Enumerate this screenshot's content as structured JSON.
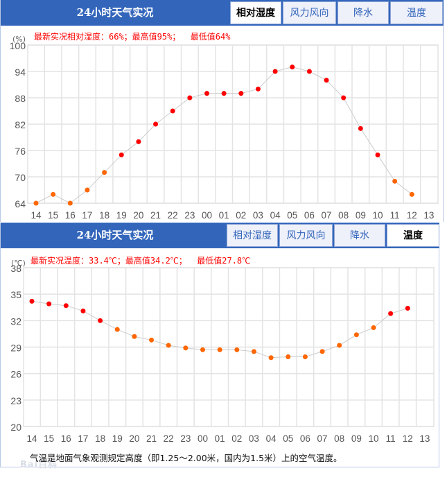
{
  "panels": [
    {
      "title": "24小时天气实况",
      "tabs": [
        {
          "label": "相对湿度",
          "active": true
        },
        {
          "label": "风力风向",
          "active": false
        },
        {
          "label": "降水",
          "active": false
        },
        {
          "label": "温度",
          "active": false
        }
      ],
      "latest_text": "最新实况相对湿度：66%；最高值95%；  最低值64%",
      "unit": "(%)"
    },
    {
      "title": "24小时天气实况",
      "tabs": [
        {
          "label": "相对湿度",
          "active": false
        },
        {
          "label": "风力风向",
          "active": false
        },
        {
          "label": "降水",
          "active": false
        },
        {
          "label": "温度",
          "active": true
        }
      ],
      "latest_text": "最新实况温度：33.4℃；最高值34.2℃；  最低值27.8℃",
      "unit": "(℃)",
      "caption": "气温是地面气象观测规定高度（即1.25～2.00米，国内为1.5米）上的空气温度。",
      "watermark": "Bai百科"
    }
  ],
  "colors": {
    "header_bg": "#3366bb",
    "grid": "#e3e3e3",
    "line": "#cccccc",
    "dot_high": "#ff0000",
    "dot_low": "#ff6600"
  },
  "chart_data": [
    {
      "type": "line",
      "title": "最新实况相对湿度：66%；最高值95%；最低值64%",
      "xlabel": "",
      "ylabel": "(%)",
      "categories": [
        "14",
        "15",
        "16",
        "17",
        "18",
        "19",
        "20",
        "21",
        "22",
        "23",
        "00",
        "01",
        "02",
        "03",
        "04",
        "05",
        "06",
        "07",
        "08",
        "09",
        "10",
        "11",
        "12",
        "13"
      ],
      "values": [
        64,
        66,
        64,
        67,
        71,
        75,
        78,
        82,
        85,
        88,
        89,
        89,
        89,
        90,
        94,
        95,
        94,
        92,
        88,
        81,
        75,
        69,
        66,
        null
      ],
      "yticks": [
        64,
        70,
        76,
        82,
        88,
        94,
        100
      ],
      "ylim": [
        64,
        100
      ],
      "highlight_threshold": 75,
      "grid": true,
      "legend": "none"
    },
    {
      "type": "line",
      "title": "最新实况温度：33.4℃；最高值34.2℃；最低值27.8℃",
      "xlabel": "",
      "ylabel": "(℃)",
      "categories": [
        "14",
        "15",
        "16",
        "17",
        "18",
        "19",
        "20",
        "21",
        "22",
        "23",
        "00",
        "01",
        "02",
        "03",
        "04",
        "05",
        "06",
        "07",
        "08",
        "09",
        "10",
        "11",
        "12",
        "13"
      ],
      "values": [
        34.2,
        33.9,
        33.7,
        33.1,
        32.0,
        31.0,
        30.2,
        29.8,
        29.2,
        28.9,
        28.7,
        28.7,
        28.7,
        28.5,
        27.8,
        27.9,
        27.9,
        28.5,
        29.2,
        30.4,
        31.2,
        32.8,
        33.4,
        null
      ],
      "yticks": [
        20,
        23,
        26,
        29,
        32,
        35,
        38
      ],
      "ylim": [
        20,
        38
      ],
      "highlight_threshold": 32,
      "grid": true,
      "legend": "none"
    }
  ]
}
